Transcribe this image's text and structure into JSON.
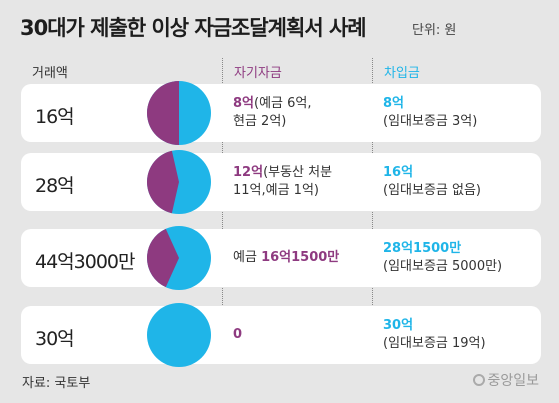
{
  "title": "30대가 제출한 이상 자금조달계획서 사례",
  "unit": "단위: 원",
  "headers": {
    "amount": "거래액",
    "own": "자기자금",
    "loan": "차입금"
  },
  "colors": {
    "own": "#8e3a80",
    "loan": "#1fb5e8"
  },
  "chart_data": {
    "type": "pie",
    "title": "30대가 제출한 이상 자금조달계획서 사례",
    "unit": "원",
    "rows": [
      {
        "amount": "16억",
        "own_value": "8억",
        "own_text_pre": "",
        "own_text_post": "(예금 6억,",
        "own_line2": "현금 2억)",
        "loan_value": "8억",
        "loan_line2": "(임대보증금 3억)",
        "own_share": 0.5
      },
      {
        "amount": "28억",
        "own_value": "12억",
        "own_text_pre": "",
        "own_text_post": "(부동산 처분",
        "own_line2": "11억,예금 1억)",
        "loan_value": "16억",
        "loan_line2": "(임대보증금 없음)",
        "own_share": 0.4286
      },
      {
        "amount": "44억3000만",
        "own_value": "16억1500만",
        "own_text_pre": "예금 ",
        "own_text_post": "",
        "own_line2": "",
        "loan_value": "28억1500만",
        "loan_line2": "(임대보증금 5000만)",
        "own_share": 0.3646
      },
      {
        "amount": "30억",
        "own_value": "0",
        "own_text_pre": "",
        "own_text_post": "",
        "own_line2": "",
        "loan_value": "30억",
        "loan_line2": "(임대보증금 19억)",
        "own_share": 0
      }
    ]
  },
  "footer": "자료: 국토부",
  "brand": "중앙일보"
}
